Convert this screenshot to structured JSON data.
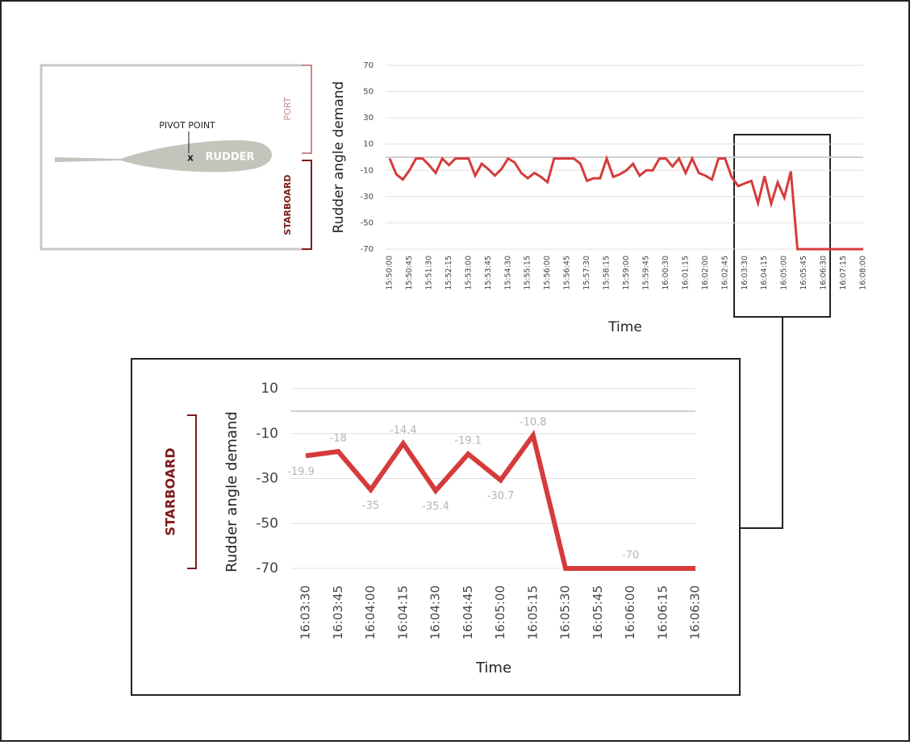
{
  "diagram": {
    "pivot_label": "PIVOT POINT",
    "pivot_mark": "x",
    "rudder_label": "RUDDER",
    "port_label": "PORT",
    "starboard_label": "STARBOARD"
  },
  "chart_data": [
    {
      "type": "line",
      "y_label": "Rudder angle demand",
      "x_label": "Time",
      "color": "#d63b3b",
      "categories": [
        "15:50:00",
        null,
        null,
        "15:50:45",
        null,
        null,
        "15:51:30",
        null,
        null,
        "15:52:15",
        null,
        null,
        "15:53:00",
        null,
        null,
        "15:53:45",
        null,
        null,
        "15:54:30",
        null,
        null,
        "15:55:15",
        null,
        null,
        "15:56:00",
        null,
        null,
        "15:56:45",
        null,
        null,
        "15:57:30",
        null,
        null,
        "15:58:15",
        null,
        null,
        "15:59:00",
        null,
        null,
        "15:59:45",
        null,
        null,
        "16:00:30",
        null,
        null,
        "16:01:15",
        null,
        null,
        "16:02:00",
        null,
        null,
        "16:02:45",
        null,
        null,
        "16:03:30",
        null,
        null,
        "16:04:15",
        null,
        null,
        "16:05:00",
        null,
        null,
        "16:05:45",
        null,
        null,
        "16:06:30",
        null,
        null,
        "16:07:15",
        null,
        null,
        "16:08:00"
      ],
      "values": [
        -1,
        -13,
        -17,
        -10,
        -1,
        -1,
        -6,
        -12,
        -1,
        -6,
        -1,
        -1,
        -1,
        -14,
        -5,
        -9,
        -14,
        -9,
        -1,
        -4,
        -12,
        -16,
        -12,
        -15,
        -19,
        -1,
        -1,
        -1,
        -1,
        -5,
        -18,
        -16,
        -16,
        -1,
        -15,
        -13,
        -10,
        -5,
        -14,
        -10,
        -10,
        -1,
        -1,
        -7,
        -1,
        -12,
        -1,
        -12,
        -14,
        -17,
        -1,
        -1,
        -15,
        -22,
        -19.9,
        -18,
        -35,
        -14.4,
        -35.4,
        -19.1,
        -30.7,
        -10.8,
        -70,
        -70,
        -70,
        -70,
        -70,
        -70,
        -70,
        -70,
        -70,
        -70,
        -70
      ],
      "ylim": [
        -70,
        70
      ],
      "yticks": [
        70,
        50,
        30,
        10,
        -10,
        -30,
        -50,
        -70
      ],
      "grid": true
    },
    {
      "type": "line",
      "y_label": "Rudder angle demand",
      "x_label": "Time",
      "side_label": "STARBOARD",
      "color": "#d63b3b",
      "categories": [
        "16:03:30",
        "16:03:45",
        "16:04:00",
        "16:04:15",
        "16:04:30",
        "16:04:45",
        "16:05:00",
        "16:05:15",
        "16:05:30",
        "16:05:45",
        "16:06:00",
        "16:06:15",
        "16:06:30"
      ],
      "values": [
        -19.9,
        -18,
        -35,
        -14.4,
        -35.4,
        -19.1,
        -30.7,
        -10.8,
        -70,
        -70,
        -70,
        -70,
        -70
      ],
      "value_labels": [
        "-19.9",
        "-18",
        "-35",
        "-14.4",
        "-35.4",
        "-19.1",
        "-30.7",
        "-10.8",
        null,
        null,
        "-70",
        null,
        null
      ],
      "ylim": [
        -70,
        10
      ],
      "yticks": [
        10,
        -10,
        -30,
        -50,
        -70
      ],
      "grid": true
    }
  ]
}
